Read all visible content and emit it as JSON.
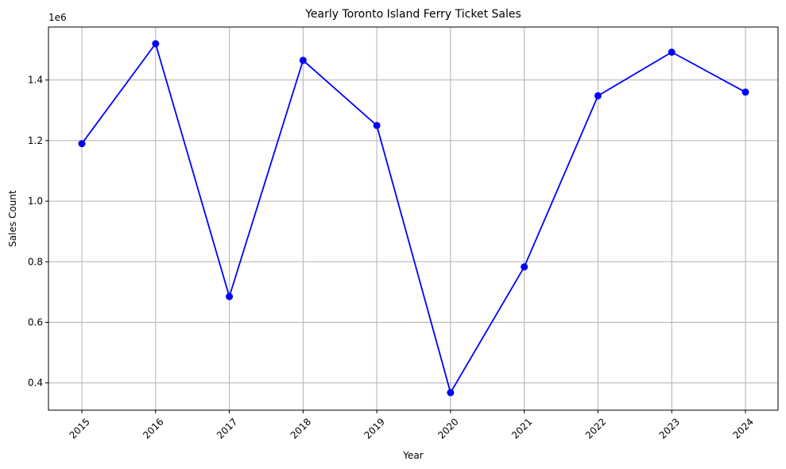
{
  "chart_data": {
    "type": "line",
    "title": "Yearly Toronto Island Ferry Ticket Sales",
    "xlabel": "Year",
    "ylabel": "Sales Count",
    "y_offset_label": "1e6",
    "categories": [
      "2015",
      "2016",
      "2017",
      "2018",
      "2019",
      "2020",
      "2021",
      "2022",
      "2023",
      "2024"
    ],
    "values": [
      1190000,
      1520000,
      685000,
      1465000,
      1250000,
      368000,
      783000,
      1348000,
      1492000,
      1360000
    ],
    "y_ticks": [
      0.4,
      0.6,
      0.8,
      1.0,
      1.2,
      1.4
    ],
    "y_tick_labels": [
      "0.4",
      "0.6",
      "0.8",
      "1.0",
      "1.2",
      "1.4"
    ],
    "ylim": [
      310000,
      1575000
    ],
    "grid": true,
    "marker": "circle",
    "x_tick_rotation_deg": 45,
    "line_color": "#0000ff",
    "grid_color": "#b0b0b0"
  }
}
